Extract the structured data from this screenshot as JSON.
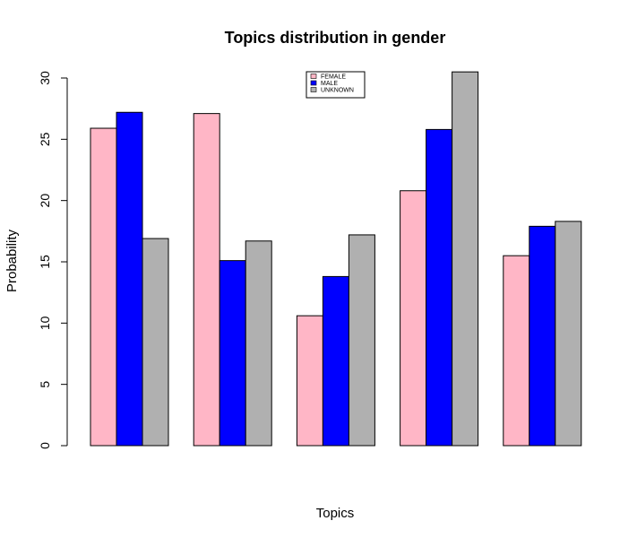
{
  "chart_data": {
    "type": "bar",
    "title": "Topics distribution in gender",
    "xlabel": "Topics",
    "ylabel": "Probability",
    "categories": [
      "",
      "",
      "",
      "",
      ""
    ],
    "series": [
      {
        "name": "FEMALE",
        "color": "#ffb6c6",
        "values": [
          25.9,
          27.1,
          10.6,
          20.8,
          15.5
        ]
      },
      {
        "name": "MALE",
        "color": "#0000ff",
        "values": [
          27.2,
          15.1,
          13.8,
          25.8,
          17.9
        ]
      },
      {
        "name": "UNKNOWN",
        "color": "#b0b0b0",
        "values": [
          16.9,
          16.7,
          17.2,
          30.5,
          18.3
        ]
      }
    ],
    "ylim": [
      0,
      30
    ],
    "yticks": [
      "0",
      "5",
      "10",
      "15",
      "20",
      "25",
      "30"
    ],
    "legend_position": "top-center",
    "grid": false
  }
}
